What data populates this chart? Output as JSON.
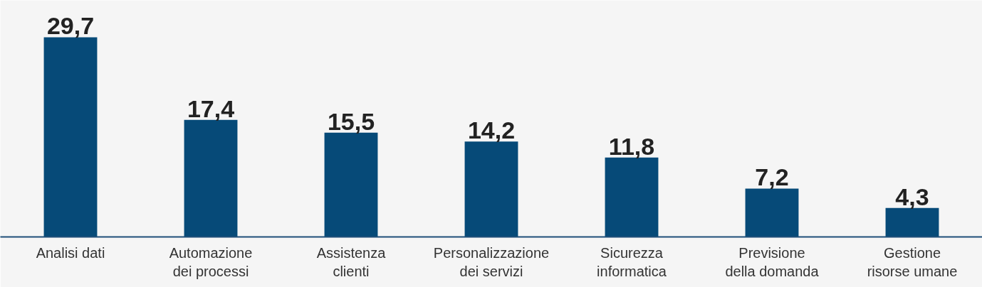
{
  "chart_data": {
    "type": "bar",
    "categories": [
      "Analisi dati",
      "Automazione dei processi",
      "Assistenza clienti",
      "Personalizzazione dei servizi",
      "Sicurezza informatica",
      "Previsione della domanda",
      "Gestione risorse umane"
    ],
    "values": [
      29.7,
      17.4,
      15.5,
      14.2,
      11.8,
      7.2,
      4.3
    ],
    "value_labels": [
      "29,7",
      "17,4",
      "15,5",
      "14,2",
      "11,8",
      "7,2",
      "4,3"
    ],
    "color": "#064a78"
  }
}
